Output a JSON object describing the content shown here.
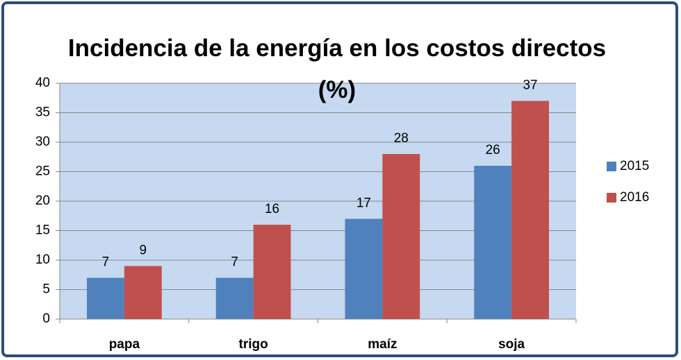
{
  "chart_data": {
    "type": "bar",
    "title": "Incidencia de la energía en los costos directos (%)",
    "categories": [
      "papa",
      "trigo",
      "maíz",
      "soja"
    ],
    "series": [
      {
        "name": "2015",
        "color": "#4f81bd",
        "values": [
          7,
          7,
          17,
          26
        ]
      },
      {
        "name": "2016",
        "color": "#c0504d",
        "values": [
          9,
          16,
          28,
          37
        ]
      }
    ],
    "ylim": [
      0,
      40
    ],
    "yticks": [
      0,
      5,
      10,
      15,
      20,
      25,
      30,
      35,
      40
    ],
    "grid": true,
    "legend": "right"
  }
}
